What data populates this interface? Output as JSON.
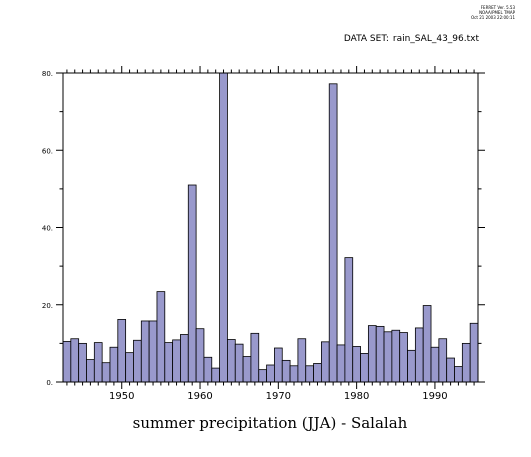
{
  "header": {
    "version_lines": [
      "FERRET Ver. 5.53",
      "NOAA/PMEL TMAP",
      "Oct 21 2003 22:00:11"
    ],
    "dataset_label": "DATA SET:",
    "dataset_name": "rain_SAL_43_96.txt"
  },
  "chart_data": {
    "type": "bar",
    "title": "",
    "xlabel": "summer precipitation (JJA) - Salalah",
    "ylabel": "",
    "xlim": [
      1942.5,
      1995.5
    ],
    "ylim": [
      0,
      80
    ],
    "x_ticks": [
      1950,
      1960,
      1970,
      1980,
      1990
    ],
    "x_tick_labels": [
      "1950",
      "1960",
      "1970",
      "1980",
      "1990"
    ],
    "y_ticks": [
      0,
      20,
      40,
      60,
      80
    ],
    "y_tick_labels": [
      "0.",
      "20.",
      "40.",
      "60.",
      "80."
    ],
    "grid": false,
    "bar_color": "#9999cc",
    "x": [
      1943,
      1944,
      1945,
      1946,
      1947,
      1948,
      1949,
      1950,
      1951,
      1952,
      1953,
      1954,
      1955,
      1956,
      1957,
      1958,
      1959,
      1960,
      1961,
      1962,
      1963,
      1964,
      1965,
      1966,
      1967,
      1968,
      1969,
      1970,
      1971,
      1972,
      1973,
      1974,
      1975,
      1976,
      1977,
      1978,
      1979,
      1980,
      1981,
      1982,
      1983,
      1984,
      1985,
      1986,
      1987,
      1988,
      1989,
      1990,
      1991,
      1992,
      1993,
      1994,
      1995
    ],
    "values": [
      10.5,
      11.2,
      10.0,
      5.8,
      10.2,
      5.0,
      9.0,
      16.2,
      7.6,
      10.8,
      15.8,
      15.8,
      23.4,
      10.2,
      10.9,
      12.3,
      51.0,
      13.8,
      6.4,
      3.6,
      80.0,
      11.0,
      9.8,
      6.6,
      12.6,
      3.2,
      4.4,
      8.8,
      5.6,
      4.2,
      11.2,
      4.2,
      4.8,
      10.4,
      77.2,
      9.6,
      32.2,
      9.2,
      7.4,
      14.6,
      14.4,
      13.0,
      13.4,
      12.8,
      8.2,
      14.0,
      19.8,
      9.0,
      11.2,
      6.2,
      4.0,
      10.0,
      15.2
    ]
  }
}
